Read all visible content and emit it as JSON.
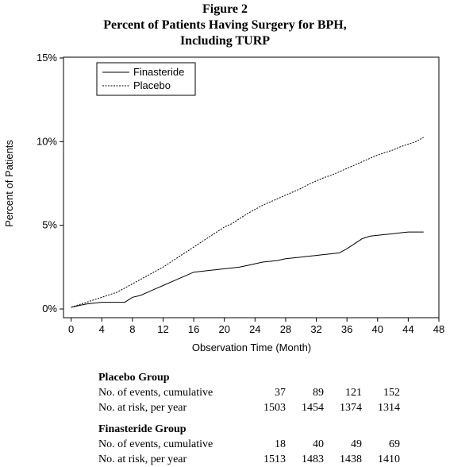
{
  "figure": {
    "label": "Figure 2",
    "title_line1": "Percent of Patients Having Surgery for BPH,",
    "title_line2": "Including TURP"
  },
  "chart_data": {
    "type": "line",
    "xlabel": "Observation Time (Month)",
    "ylabel": "Percent of Patients",
    "xlim": [
      -1,
      48
    ],
    "ylim": [
      0,
      15
    ],
    "x_ticks": [
      0,
      4,
      8,
      12,
      16,
      20,
      24,
      28,
      32,
      36,
      40,
      44,
      48
    ],
    "y_ticks": [
      0,
      5,
      10,
      15
    ],
    "y_tick_labels": [
      "0%",
      "5%",
      "10%",
      "15%"
    ],
    "legend_position": "top-left",
    "series": [
      {
        "name": "Finasteride",
        "line_style": "solid",
        "x": [
          0,
          1,
          2,
          3,
          4,
          5,
          6,
          7,
          8,
          9,
          10,
          11,
          12,
          13,
          14,
          15,
          16,
          17,
          18,
          19,
          20,
          21,
          22,
          23,
          24,
          25,
          26,
          27,
          28,
          29,
          30,
          31,
          32,
          33,
          34,
          35,
          36,
          37,
          38,
          39,
          40,
          41,
          42,
          43,
          44,
          45,
          46
        ],
        "y": [
          0.1,
          0.2,
          0.3,
          0.35,
          0.4,
          0.4,
          0.4,
          0.4,
          0.7,
          0.8,
          1.0,
          1.2,
          1.4,
          1.6,
          1.8,
          2.0,
          2.2,
          2.25,
          2.3,
          2.35,
          2.4,
          2.45,
          2.5,
          2.6,
          2.7,
          2.8,
          2.85,
          2.9,
          3.0,
          3.05,
          3.1,
          3.15,
          3.2,
          3.25,
          3.3,
          3.35,
          3.6,
          3.9,
          4.2,
          4.35,
          4.4,
          4.45,
          4.5,
          4.55,
          4.6,
          4.6,
          4.6
        ]
      },
      {
        "name": "Placebo",
        "line_style": "dashed",
        "x": [
          0,
          1,
          2,
          3,
          4,
          5,
          6,
          7,
          8,
          9,
          10,
          11,
          12,
          13,
          14,
          15,
          16,
          17,
          18,
          19,
          20,
          21,
          22,
          23,
          24,
          25,
          26,
          27,
          28,
          29,
          30,
          31,
          32,
          33,
          34,
          35,
          36,
          37,
          38,
          39,
          40,
          41,
          42,
          43,
          44,
          45,
          46
        ],
        "y": [
          0.1,
          0.25,
          0.4,
          0.55,
          0.7,
          0.85,
          1.0,
          1.25,
          1.5,
          1.75,
          2.0,
          2.25,
          2.5,
          2.8,
          3.1,
          3.4,
          3.7,
          4.0,
          4.3,
          4.6,
          4.9,
          5.1,
          5.4,
          5.7,
          5.95,
          6.2,
          6.4,
          6.6,
          6.8,
          7.0,
          7.2,
          7.45,
          7.65,
          7.85,
          8.0,
          8.2,
          8.4,
          8.6,
          8.8,
          9.0,
          9.2,
          9.35,
          9.5,
          9.7,
          9.85,
          10.0,
          10.25
        ]
      }
    ]
  },
  "table": {
    "columns": [
      "",
      "",
      "",
      ""
    ],
    "groups": [
      {
        "title": "Placebo Group",
        "rows": [
          {
            "label": "No. of events, cumulative",
            "values": [
              "37",
              "89",
              "121",
              "152"
            ]
          },
          {
            "label": "No. at risk, per year",
            "values": [
              "1503",
              "1454",
              "1374",
              "1314"
            ]
          }
        ]
      },
      {
        "title": "Finasteride Group",
        "rows": [
          {
            "label": "No. of events, cumulative",
            "values": [
              "18",
              "40",
              "49",
              "69"
            ]
          },
          {
            "label": "No. at risk, per year",
            "values": [
              "1513",
              "1483",
              "1438",
              "1410"
            ]
          }
        ]
      }
    ]
  }
}
